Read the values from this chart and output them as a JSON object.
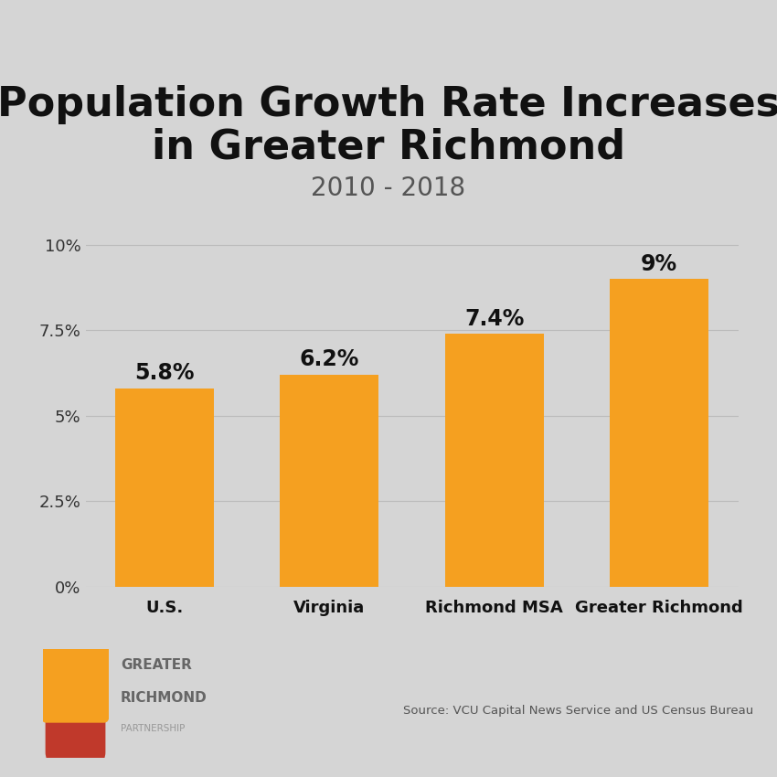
{
  "title_line1": "Population Growth Rate Increases",
  "title_line2": "in Greater Richmond",
  "subtitle": "2010 - 2018",
  "categories": [
    "U.S.",
    "Virginia",
    "Richmond MSA",
    "Greater Richmond"
  ],
  "values": [
    5.8,
    6.2,
    7.4,
    9.0
  ],
  "value_labels": [
    "5.8%",
    "6.2%",
    "7.4%",
    "9%"
  ],
  "bar_color": "#F5A020",
  "background_color": "#D5D5D5",
  "plot_bg_color": "#D5D5D5",
  "yticks": [
    0,
    2.5,
    5.0,
    7.5,
    10.0
  ],
  "ytick_labels": [
    "0%",
    "2.5%",
    "5%",
    "7.5%",
    "10%"
  ],
  "ylim_max": 10.8,
  "title_fontsize": 32,
  "subtitle_fontsize": 20,
  "bar_label_fontsize": 17,
  "xtick_fontsize": 13,
  "ytick_fontsize": 13,
  "source_text": "Source: VCU Capital News Service and US Census Bureau",
  "logo_text_line1": "GREATER",
  "logo_text_line2": "RICHMOND",
  "logo_text_line3": "PARTNERSHIP",
  "logo_orange": "#F5A020",
  "logo_red": "#C0392B"
}
